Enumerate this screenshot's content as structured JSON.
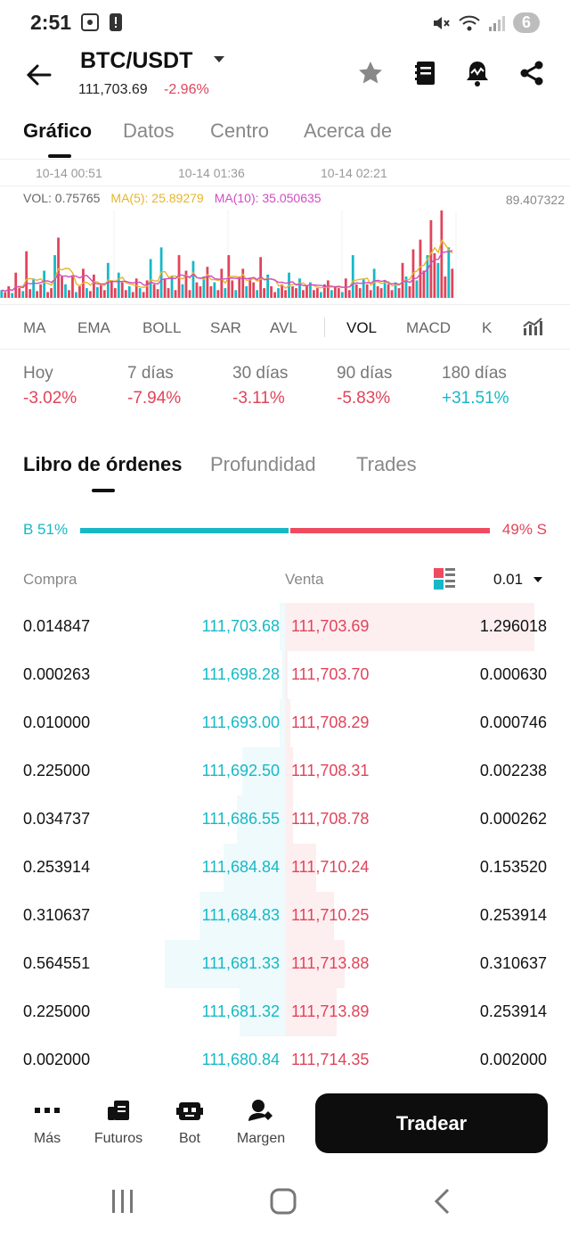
{
  "status_bar": {
    "time": "2:51",
    "notification_count": "6"
  },
  "header": {
    "pair": "BTC/USDT",
    "price": "111,703.69",
    "change": "-2.96%",
    "icons": [
      "star-icon",
      "notebook-icon",
      "alert-bell-icon",
      "share-icon"
    ]
  },
  "main_tabs": [
    {
      "label": "Gráfico",
      "active": true
    },
    {
      "label": "Datos",
      "active": false
    },
    {
      "label": "Centro",
      "active": false
    },
    {
      "label": "Acerca de",
      "active": false
    }
  ],
  "chart": {
    "time_labels": [
      "10-14 00:51",
      "10-14 01:36",
      "10-14 02:21"
    ],
    "vol": "VOL: 0.75765",
    "ma5": "MA(5): 25.89279",
    "ma10": "MA(10): 35.050635",
    "max_value": "89.407322",
    "colors": {
      "up": "#17b8c6",
      "down": "#e0445a",
      "ma5": "#e7b52b",
      "ma10": "#d04cc3"
    },
    "volumes": [
      8,
      6,
      12,
      5,
      26,
      10,
      7,
      48,
      9,
      20,
      7,
      14,
      28,
      6,
      10,
      44,
      62,
      22,
      14,
      8,
      22,
      6,
      12,
      30,
      10,
      7,
      24,
      11,
      14,
      8,
      36,
      18,
      10,
      26,
      16,
      8,
      12,
      6,
      20,
      10,
      6,
      18,
      40,
      14,
      9,
      52,
      20,
      10,
      22,
      8,
      44,
      14,
      28,
      8,
      38,
      16,
      12,
      22,
      32,
      12,
      16,
      8,
      30,
      10,
      44,
      18,
      8,
      22,
      30,
      12,
      20,
      16,
      8,
      42,
      10,
      24,
      12,
      6,
      10,
      14,
      8,
      26,
      12,
      10,
      20,
      8,
      12,
      16,
      8,
      10,
      6,
      14,
      18,
      8,
      12,
      10,
      6,
      20,
      8,
      44,
      14,
      10,
      20,
      14,
      8,
      30,
      12,
      10,
      18,
      14,
      8,
      16,
      10,
      36,
      22,
      12,
      50,
      18,
      60,
      28,
      44,
      80,
      46,
      36,
      90,
      22,
      52,
      30
    ]
  },
  "indicators": [
    {
      "label": "MA",
      "active": false
    },
    {
      "label": "EMA",
      "active": false
    },
    {
      "label": "BOLL",
      "active": false
    },
    {
      "label": "SAR",
      "active": false
    },
    {
      "label": "AVL",
      "active": false
    },
    {
      "label": "VOL",
      "active": true
    },
    {
      "label": "MACD",
      "active": false
    },
    {
      "label": "K",
      "active": false
    }
  ],
  "performance": [
    {
      "label": "Hoy",
      "value": "-3.02%",
      "dir": "neg"
    },
    {
      "label": "7 días",
      "value": "-7.94%",
      "dir": "neg"
    },
    {
      "label": "30 días",
      "value": "-3.11%",
      "dir": "neg"
    },
    {
      "label": "90 días",
      "value": "-5.83%",
      "dir": "neg"
    },
    {
      "label": "180 días",
      "value": "+31.51%",
      "dir": "pos"
    }
  ],
  "orderbook_tabs": [
    {
      "label": "Libro de órdenes",
      "active": true
    },
    {
      "label": "Profundidad",
      "active": false
    },
    {
      "label": "Trades",
      "active": false
    }
  ],
  "ratio": {
    "buy_label": "B 51%",
    "sell_label": "49% S",
    "buy_pct": 51,
    "sell_pct": 49
  },
  "orderbook": {
    "buy_header": "Compra",
    "sell_header": "Venta",
    "depth": "0.01",
    "rows": [
      {
        "buy_qty": "0.014847",
        "buy_price": "111,703.68",
        "sell_price": "111,703.69",
        "sell_qty": "1.296018",
        "buy_depth": 0.02,
        "sell_depth": 0.96
      },
      {
        "buy_qty": "0.000263",
        "buy_price": "111,698.28",
        "sell_price": "111,703.70",
        "sell_qty": "0.000630",
        "buy_depth": 0.01,
        "sell_depth": 0.01
      },
      {
        "buy_qty": "0.010000",
        "buy_price": "111,693.00",
        "sell_price": "111,708.29",
        "sell_qty": "0.000746",
        "buy_depth": 0.02,
        "sell_depth": 0.02
      },
      {
        "buy_qty": "0.225000",
        "buy_price": "111,692.50",
        "sell_price": "111,708.31",
        "sell_qty": "0.002238",
        "buy_depth": 0.16,
        "sell_depth": 0.03
      },
      {
        "buy_qty": "0.034737",
        "buy_price": "111,686.55",
        "sell_price": "111,708.78",
        "sell_qty": "0.000262",
        "buy_depth": 0.18,
        "sell_depth": 0.03
      },
      {
        "buy_qty": "0.253914",
        "buy_price": "111,684.84",
        "sell_price": "111,710.24",
        "sell_qty": "0.153520",
        "buy_depth": 0.23,
        "sell_depth": 0.12
      },
      {
        "buy_qty": "0.310637",
        "buy_price": "111,684.83",
        "sell_price": "111,710.25",
        "sell_qty": "0.253914",
        "buy_depth": 0.32,
        "sell_depth": 0.19
      },
      {
        "buy_qty": "0.564551",
        "buy_price": "111,681.33",
        "sell_price": "111,713.88",
        "sell_qty": "0.310637",
        "buy_depth": 0.45,
        "sell_depth": 0.23
      },
      {
        "buy_qty": "0.225000",
        "buy_price": "111,681.32",
        "sell_price": "111,713.89",
        "sell_qty": "0.253914",
        "buy_depth": 0.17,
        "sell_depth": 0.2
      },
      {
        "buy_qty": "0.002000",
        "buy_price": "111,680.84",
        "sell_price": "111,714.35",
        "sell_qty": "0.002000",
        "buy_depth": 0.0,
        "sell_depth": 0.0
      }
    ]
  },
  "bottom_bar": {
    "items": [
      {
        "label": "Más",
        "icon": "more-dots-icon"
      },
      {
        "label": "Futuros",
        "icon": "futures-icon"
      },
      {
        "label": "Bot",
        "icon": "bot-icon"
      },
      {
        "label": "Margen",
        "icon": "margin-icon"
      }
    ],
    "trade_label": "Tradear"
  }
}
